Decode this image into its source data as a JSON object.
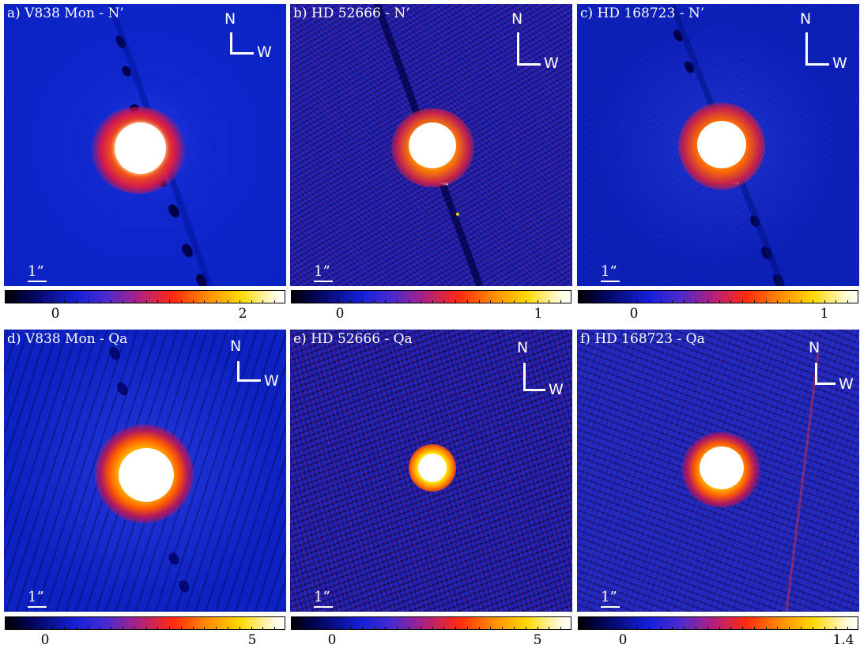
{
  "panels": [
    {
      "label": "a) V838 Mon - N’",
      "compass_n": "N",
      "compass_w": "W",
      "scale": "1”"
    },
    {
      "label": "b) HD 52666 - N’",
      "compass_n": "N",
      "compass_w": "W",
      "scale": "1”"
    },
    {
      "label": "c) HD 168723 - N’",
      "compass_n": "N",
      "compass_w": "W",
      "scale": "1”"
    },
    {
      "label": "d) V838 Mon - Qa",
      "compass_n": "N",
      "compass_w": "W",
      "scale": "1”"
    },
    {
      "label": "e) HD 52666 - Qa",
      "compass_n": "N",
      "compass_w": "W",
      "scale": "1”"
    },
    {
      "label": "f) HD 168723 - Qa",
      "compass_n": "N",
      "compass_w": "W",
      "scale": "1”"
    }
  ],
  "colorbars": [
    {
      "ticks": [
        "0",
        "2"
      ]
    },
    {
      "ticks": [
        "0",
        "1"
      ]
    },
    {
      "ticks": [
        "0",
        "1"
      ]
    },
    {
      "ticks": [
        "0",
        "5"
      ]
    },
    {
      "ticks": [
        "0",
        "5"
      ]
    },
    {
      "ticks": [
        "0",
        "1.4"
      ]
    }
  ],
  "colors": {
    "background": "#0b22c4",
    "core": "#ffffff",
    "halo": "#ff8a00"
  }
}
